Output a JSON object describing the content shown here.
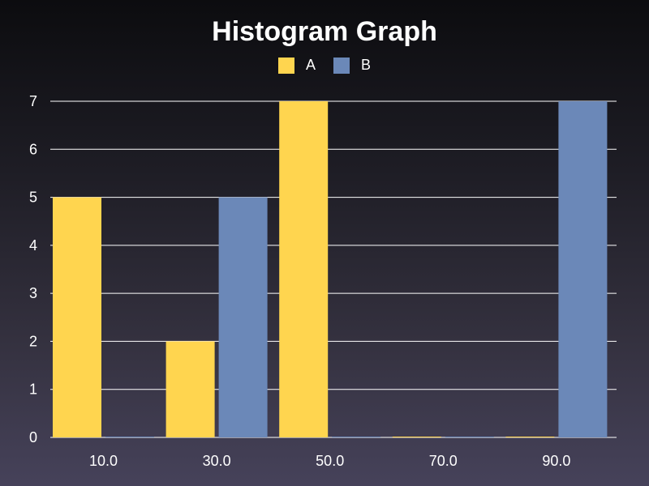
{
  "chart_data": {
    "type": "bar",
    "title": "Histogram Graph",
    "xlabel": "",
    "ylabel": "",
    "categories": [
      "10.0",
      "30.0",
      "50.0",
      "70.0",
      "90.0"
    ],
    "series": [
      {
        "name": "A",
        "color": "#ffd54f",
        "values": [
          5,
          2,
          7,
          0,
          0
        ]
      },
      {
        "name": "B",
        "color": "#6b88b8",
        "values": [
          0,
          5,
          0,
          0,
          7
        ]
      }
    ],
    "y_ticks": [
      "0",
      "1",
      "2",
      "3",
      "4",
      "5",
      "6",
      "7"
    ],
    "ylim": [
      0,
      7
    ],
    "grid": true,
    "legend_position": "top-center"
  }
}
